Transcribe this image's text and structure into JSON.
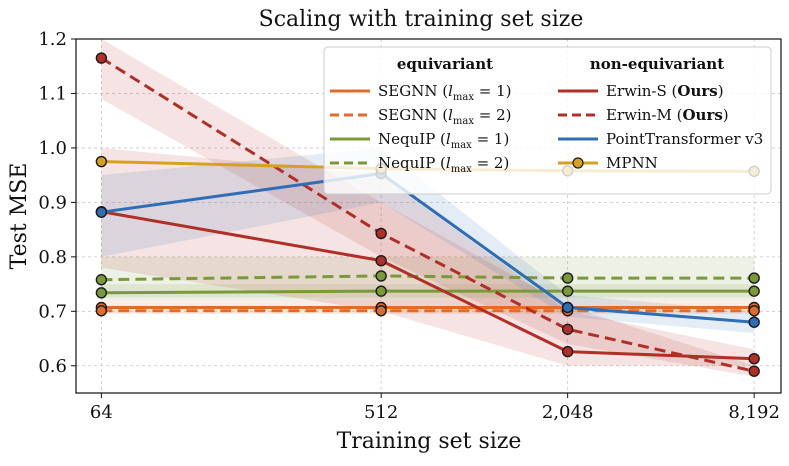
{
  "chart_data": {
    "type": "line",
    "title": "Scaling with training set size",
    "xlabel": "Training set size",
    "ylabel": "Test MSE",
    "x_scale": "log2",
    "x": [
      64,
      512,
      2048,
      8192
    ],
    "x_tick_labels": [
      "64",
      "512",
      "2,048",
      "8,192"
    ],
    "y_ticks": [
      0.6,
      0.7,
      0.8,
      0.9,
      1.0,
      1.1,
      1.2
    ],
    "y_tick_labels": [
      "0.6",
      "0.7",
      "0.8",
      "0.9",
      "1.0",
      "1.1",
      "1.2"
    ],
    "xlim": [
      53,
      10000
    ],
    "ylim": [
      0.55,
      1.2
    ],
    "grid": true,
    "legend": {
      "placement": "top-right",
      "group_headers": [
        "equivariant",
        "non-equivariant"
      ]
    },
    "series": [
      {
        "name": "SEGNN",
        "sub": "max",
        "suffix": " = 1)",
        "bold": "",
        "color": "#e06c2b",
        "dashed": false,
        "group": 0,
        "values": [
          0.707,
          0.707,
          0.707,
          0.707
        ],
        "band_low": [
          0.695,
          0.695,
          0.695,
          0.695
        ],
        "band_high": [
          0.72,
          0.72,
          0.72,
          0.72
        ]
      },
      {
        "name": "SEGNN",
        "sub": "max",
        "suffix": " = 2)",
        "bold": "",
        "color": "#e06c2b",
        "dashed": true,
        "group": 0,
        "values": [
          0.701,
          0.701,
          0.701,
          0.701
        ],
        "band_low": null,
        "band_high": null
      },
      {
        "name": "NequIP",
        "sub": "max",
        "suffix": " = 1)",
        "bold": "",
        "color": "#7a9a3a",
        "dashed": false,
        "group": 0,
        "values": [
          0.734,
          0.737,
          0.737,
          0.737
        ],
        "band_low": [
          0.72,
          0.72,
          0.72,
          0.72
        ],
        "band_high": [
          0.75,
          0.75,
          0.75,
          0.75
        ]
      },
      {
        "name": "NequIP",
        "sub": "max",
        "suffix": " = 2)",
        "bold": "",
        "color": "#7a9a3a",
        "dashed": true,
        "group": 0,
        "values": [
          0.758,
          0.765,
          0.761,
          0.761
        ],
        "band_low": [
          0.725,
          0.725,
          0.725,
          0.725
        ],
        "band_high": [
          0.8,
          0.8,
          0.8,
          0.8
        ]
      },
      {
        "name": "Erwin-S (",
        "sub": "",
        "suffix": ")",
        "bold": "Ours",
        "color": "#b03028",
        "dashed": false,
        "group": 1,
        "values": [
          0.883,
          0.793,
          0.626,
          0.613
        ],
        "band_low": [
          0.78,
          0.7,
          0.6,
          0.6
        ],
        "band_high": [
          1.0,
          0.95,
          0.7,
          0.63
        ]
      },
      {
        "name": "Erwin-M (",
        "sub": "",
        "suffix": ")",
        "bold": "Ours",
        "color": "#b03028",
        "dashed": true,
        "group": 1,
        "values": [
          1.165,
          0.843,
          0.667,
          0.59
        ],
        "band_low": [
          1.09,
          0.8,
          0.64,
          0.58
        ],
        "band_high": [
          1.2,
          0.9,
          0.71,
          0.6
        ]
      },
      {
        "name": "PointTransformer v3",
        "sub": "",
        "suffix": "",
        "bold": "",
        "color": "#2f6db5",
        "dashed": false,
        "group": 1,
        "values": [
          0.882,
          0.953,
          0.707,
          0.68
        ],
        "band_low": [
          0.8,
          0.9,
          0.69,
          0.66
        ],
        "band_high": [
          0.95,
          1.0,
          0.73,
          0.7
        ]
      },
      {
        "name": "MPNN",
        "sub": "",
        "suffix": "",
        "bold": "",
        "color": "#d6a21e",
        "dashed": false,
        "group": 1,
        "values": [
          0.975,
          0.962,
          0.958,
          0.957
        ],
        "band_low": null,
        "band_high": null
      }
    ]
  }
}
